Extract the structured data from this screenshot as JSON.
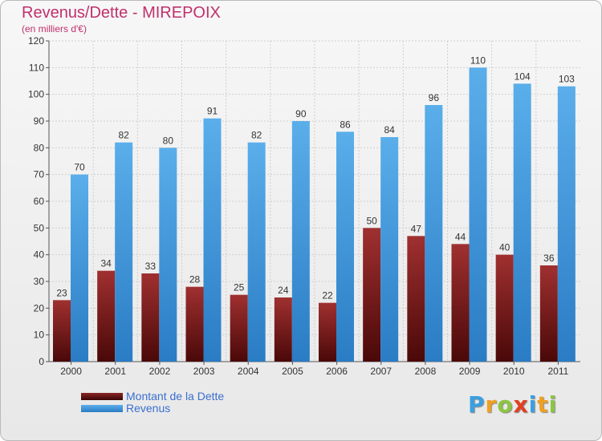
{
  "chart_data": {
    "type": "bar",
    "title": "Revenus/Dette - MIREPOIX",
    "subtitle": "(en milliers d'€)",
    "categories": [
      "2000",
      "2001",
      "2002",
      "2003",
      "2004",
      "2005",
      "2006",
      "2007",
      "2008",
      "2009",
      "2010",
      "2011"
    ],
    "series": [
      {
        "name": "Montant de la Dette",
        "color": "#7a1e1e",
        "values": [
          23,
          34,
          33,
          28,
          25,
          24,
          22,
          50,
          47,
          44,
          40,
          36
        ]
      },
      {
        "name": "Revenus",
        "color": "#4aa3e6",
        "values": [
          70,
          82,
          80,
          91,
          82,
          90,
          86,
          84,
          96,
          110,
          104,
          103
        ]
      }
    ],
    "yticks": [
      "0",
      "10",
      "20",
      "30",
      "40",
      "50",
      "60",
      "70",
      "80",
      "90",
      "100",
      "110",
      "120"
    ],
    "ylim": [
      0,
      120
    ],
    "grid": true,
    "legend_position": "bottom-left"
  },
  "brand": {
    "letters": [
      "P",
      "r",
      "o",
      "x",
      "i",
      "t",
      "i"
    ],
    "colors": [
      "#3aa0e0",
      "#f0a020",
      "#8cc63f",
      "#e04020",
      "#3aa0e0",
      "#f0a020",
      "#8cc63f"
    ]
  }
}
